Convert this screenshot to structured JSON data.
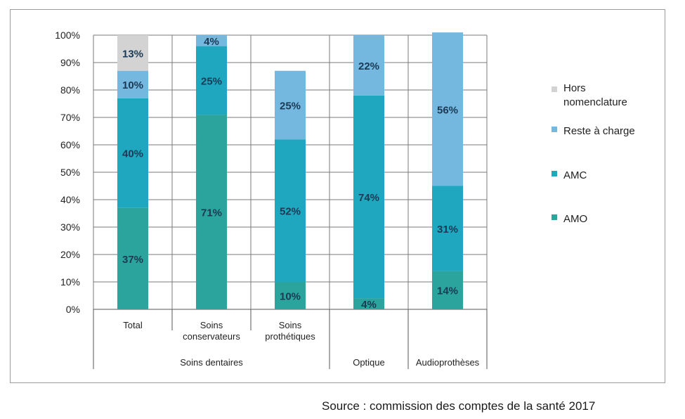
{
  "chart_data": {
    "type": "bar",
    "stacked": true,
    "categories": [
      "Total",
      "Soins conservateurs",
      "Soins prothétiques",
      "",
      ""
    ],
    "groups": [
      "Soins dentaires",
      "Optique",
      "Audioprothèses"
    ],
    "y_ticks": [
      "0%",
      "10%",
      "20%",
      "30%",
      "40%",
      "50%",
      "60%",
      "70%",
      "80%",
      "90%",
      "100%"
    ],
    "ylim": [
      0,
      100
    ],
    "series": [
      {
        "name": "AMO",
        "color": "#2aa49c",
        "values": [
          37,
          71,
          10,
          4,
          14
        ],
        "labels": [
          "37%",
          "71%",
          "10%",
          "4%",
          "14%"
        ]
      },
      {
        "name": "AMC",
        "color": "#1fa7bf",
        "values": [
          40,
          25,
          52,
          74,
          31
        ],
        "labels": [
          "40%",
          "25%",
          "52%",
          "74%",
          "31%"
        ]
      },
      {
        "name": "Reste à charge",
        "color": "#74b8e0",
        "values": [
          10,
          4,
          25,
          22,
          56
        ],
        "labels": [
          "10%",
          "4%",
          "25%",
          "22%",
          "56%"
        ]
      },
      {
        "name": "Hors nomenclature",
        "color": "#d3d3d3",
        "values": [
          13,
          0,
          0,
          0,
          0
        ],
        "labels": [
          "13%",
          "",
          "",
          "",
          ""
        ]
      }
    ],
    "legend_position": "right",
    "grid": true
  },
  "source": "Source : commission des comptes de la santé 2017"
}
